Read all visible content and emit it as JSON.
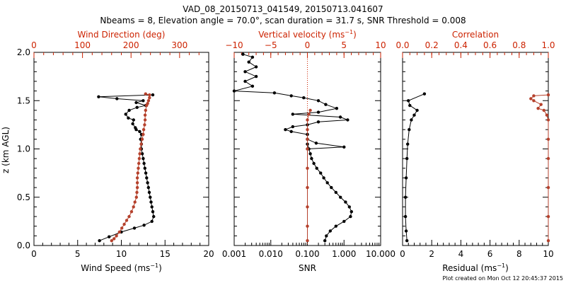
{
  "title_line1": "VAD_08_20150713_041549, 20150713.041607",
  "title_line2": "Nbeams = 8, Elevation angle = 70.0°, scan duration = 31.7 s, SNR Threshold = 0.008",
  "footer": "Plot created on Mon Oct 12 20:45:37 2015",
  "ylabel": "z (km AGL)",
  "colors": {
    "black_series": "#000000",
    "red_series": "#b5412c",
    "axis_top": "#cc2200"
  },
  "chart_data": [
    {
      "type": "line",
      "panel": "wind",
      "ylim": [
        0,
        2
      ],
      "yticks": [
        "0.0",
        "0.5",
        "1.0",
        "1.5",
        "2.0"
      ],
      "bottom_axis": {
        "label": "Wind Speed (ms",
        "unit_exp": "−1",
        "unit_close": ")",
        "range": [
          0,
          20
        ],
        "ticks": [
          "0",
          "5",
          "10",
          "15",
          "20"
        ]
      },
      "top_axis": {
        "label": "Wind Direction (deg)",
        "range": [
          0,
          360
        ],
        "ticks": [
          "0",
          "100",
          "200",
          "300"
        ]
      },
      "series": [
        {
          "axis": "bottom",
          "color": "black",
          "points": [
            [
              7.5,
              0.05
            ],
            [
              8.6,
              0.09
            ],
            [
              10,
              0.14
            ],
            [
              11.5,
              0.18
            ],
            [
              12.6,
              0.21
            ],
            [
              13.5,
              0.25
            ],
            [
              13.7,
              0.3
            ],
            [
              13.6,
              0.35
            ],
            [
              13.5,
              0.4
            ],
            [
              13.4,
              0.45
            ],
            [
              13.3,
              0.5
            ],
            [
              13.2,
              0.55
            ],
            [
              13.1,
              0.6
            ],
            [
              13.0,
              0.65
            ],
            [
              12.9,
              0.7
            ],
            [
              12.8,
              0.75
            ],
            [
              12.7,
              0.8
            ],
            [
              12.6,
              0.85
            ],
            [
              12.5,
              0.9
            ],
            [
              12.4,
              0.95
            ],
            [
              12.3,
              1.0
            ],
            [
              12.3,
              1.05
            ],
            [
              12.2,
              1.1
            ],
            [
              12.3,
              1.15
            ],
            [
              12.1,
              1.18
            ],
            [
              11.7,
              1.2
            ],
            [
              11.6,
              1.22
            ],
            [
              11.3,
              1.26
            ],
            [
              11.4,
              1.3
            ],
            [
              10.8,
              1.32
            ],
            [
              10.5,
              1.36
            ],
            [
              10.9,
              1.4
            ],
            [
              11.8,
              1.43
            ],
            [
              12.8,
              1.45
            ],
            [
              11.7,
              1.48
            ],
            [
              12.5,
              1.5
            ],
            [
              9.5,
              1.52
            ],
            [
              7.4,
              1.54
            ],
            [
              13.6,
              1.56
            ]
          ]
        },
        {
          "axis": "top",
          "color": "red",
          "points": [
            [
              160,
              0.05
            ],
            [
              165,
              0.07
            ],
            [
              170,
              0.1
            ],
            [
              176,
              0.14
            ],
            [
              181,
              0.18
            ],
            [
              186,
              0.22
            ],
            [
              191,
              0.26
            ],
            [
              196,
              0.3
            ],
            [
              201,
              0.35
            ],
            [
              205,
              0.4
            ],
            [
              208,
              0.45
            ],
            [
              211,
              0.5
            ],
            [
              212,
              0.55
            ],
            [
              213,
              0.6
            ],
            [
              213,
              0.65
            ],
            [
              213,
              0.7
            ],
            [
              214,
              0.75
            ],
            [
              215,
              0.8
            ],
            [
              216,
              0.85
            ],
            [
              217,
              0.9
            ],
            [
              218,
              0.95
            ],
            [
              219,
              1.0
            ],
            [
              221,
              1.05
            ],
            [
              223,
              1.1
            ],
            [
              225,
              1.15
            ],
            [
              226,
              1.2
            ],
            [
              228,
              1.25
            ],
            [
              229,
              1.3
            ],
            [
              229,
              1.35
            ],
            [
              230,
              1.4
            ],
            [
              232,
              1.45
            ],
            [
              234,
              1.47
            ],
            [
              236,
              1.5
            ],
            [
              238,
              1.53
            ],
            [
              238,
              1.56
            ],
            [
              230,
              1.57
            ]
          ]
        }
      ]
    },
    {
      "type": "line",
      "panel": "vertical",
      "ylim": [
        0,
        2
      ],
      "bottom_axis": {
        "label": "SNR",
        "scale": "log",
        "range": [
          0.001,
          10
        ],
        "ticks": [
          "0.001",
          "0.010",
          "0.100",
          "1.000",
          "10.000"
        ]
      },
      "top_axis": {
        "label": "Vertical velocity (ms",
        "unit_exp": "−1",
        "unit_close": ")",
        "range": [
          -10,
          10
        ],
        "ticks": [
          "−10",
          "−5",
          "0",
          "5",
          "10"
        ]
      },
      "series": [
        {
          "axis": "bottom",
          "color": "black",
          "points": [
            [
              0.3,
              0.05
            ],
            [
              0.33,
              0.1
            ],
            [
              0.42,
              0.15
            ],
            [
              0.6,
              0.2
            ],
            [
              1.0,
              0.25
            ],
            [
              1.5,
              0.3
            ],
            [
              1.6,
              0.35
            ],
            [
              1.4,
              0.4
            ],
            [
              1.1,
              0.45
            ],
            [
              0.8,
              0.5
            ],
            [
              0.6,
              0.55
            ],
            [
              0.45,
              0.6
            ],
            [
              0.35,
              0.65
            ],
            [
              0.28,
              0.7
            ],
            [
              0.23,
              0.75
            ],
            [
              0.18,
              0.8
            ],
            [
              0.15,
              0.85
            ],
            [
              0.13,
              0.9
            ],
            [
              0.12,
              0.95
            ],
            [
              0.11,
              1.0
            ],
            [
              0.1,
              1.05
            ],
            [
              0.1,
              1.1
            ],
            [
              0.1,
              1.15
            ]
          ]
        },
        {
          "axis": "top",
          "color": "black",
          "points": [
            [
              0,
              1.0
            ],
            [
              5.0,
              1.02
            ],
            [
              1.2,
              1.06
            ],
            [
              0,
              1.1
            ],
            [
              0,
              1.15
            ],
            [
              -2.2,
              1.18
            ],
            [
              -3.0,
              1.2
            ],
            [
              -2.0,
              1.23
            ],
            [
              0,
              1.25
            ],
            [
              1.5,
              1.28
            ],
            [
              5.5,
              1.3
            ],
            [
              4.5,
              1.33
            ],
            [
              -2.0,
              1.36
            ],
            [
              1.5,
              1.38
            ],
            [
              4.0,
              1.42
            ],
            [
              2.5,
              1.46
            ],
            [
              1.5,
              1.5
            ],
            [
              -0.5,
              1.53
            ],
            [
              -2.2,
              1.55
            ],
            [
              -4.5,
              1.58
            ],
            [
              -10.0,
              1.6
            ],
            [
              -7.5,
              1.65
            ],
            [
              -8.5,
              1.7
            ],
            [
              -7.0,
              1.75
            ],
            [
              -8.5,
              1.8
            ],
            [
              -7.0,
              1.85
            ],
            [
              -8.0,
              1.9
            ],
            [
              -7.5,
              1.95
            ],
            [
              -8.8,
              1.98
            ]
          ]
        },
        {
          "axis": "bottom",
          "color": "red",
          "points": [
            [
              0.1,
              0.05
            ],
            [
              0.1,
              0.2
            ],
            [
              0.1,
              0.4
            ],
            [
              0.1,
              0.6
            ],
            [
              0.1,
              0.8
            ],
            [
              0.1,
              1.0
            ],
            [
              0.1,
              1.1
            ],
            [
              0.1,
              1.2
            ],
            [
              0.1,
              1.3
            ],
            [
              0.11,
              1.36
            ],
            [
              0.12,
              1.4
            ]
          ]
        }
      ]
    },
    {
      "type": "line",
      "panel": "correlation",
      "ylim": [
        0,
        2
      ],
      "bottom_axis": {
        "label": "Residual (ms",
        "unit_exp": "−1",
        "unit_close": ")",
        "range": [
          0,
          10
        ],
        "ticks": [
          "0",
          "2",
          "4",
          "6",
          "8",
          "10"
        ]
      },
      "top_axis": {
        "label": "Correlation",
        "range": [
          0,
          1
        ],
        "ticks": [
          "0.0",
          "0.2",
          "0.4",
          "0.6",
          "0.8",
          "1.0"
        ]
      },
      "series": [
        {
          "axis": "bottom",
          "color": "black",
          "points": [
            [
              0.3,
              0.05
            ],
            [
              0.25,
              0.15
            ],
            [
              0.2,
              0.3
            ],
            [
              0.2,
              0.5
            ],
            [
              0.25,
              0.7
            ],
            [
              0.3,
              0.9
            ],
            [
              0.35,
              1.05
            ],
            [
              0.45,
              1.2
            ],
            [
              0.6,
              1.3
            ],
            [
              0.8,
              1.35
            ],
            [
              1.0,
              1.4
            ],
            [
              0.5,
              1.45
            ],
            [
              0.4,
              1.5
            ],
            [
              1.5,
              1.57
            ]
          ]
        },
        {
          "axis": "top",
          "color": "red",
          "points": [
            [
              1.0,
              0.05
            ],
            [
              1.0,
              0.3
            ],
            [
              1.0,
              0.6
            ],
            [
              1.0,
              0.9
            ],
            [
              1.0,
              1.1
            ],
            [
              1.0,
              1.3
            ],
            [
              0.99,
              1.35
            ],
            [
              0.97,
              1.4
            ],
            [
              0.93,
              1.42
            ],
            [
              0.95,
              1.46
            ],
            [
              0.9,
              1.5
            ],
            [
              0.88,
              1.52
            ],
            [
              0.9,
              1.55
            ],
            [
              1.0,
              1.56
            ]
          ]
        }
      ]
    }
  ]
}
